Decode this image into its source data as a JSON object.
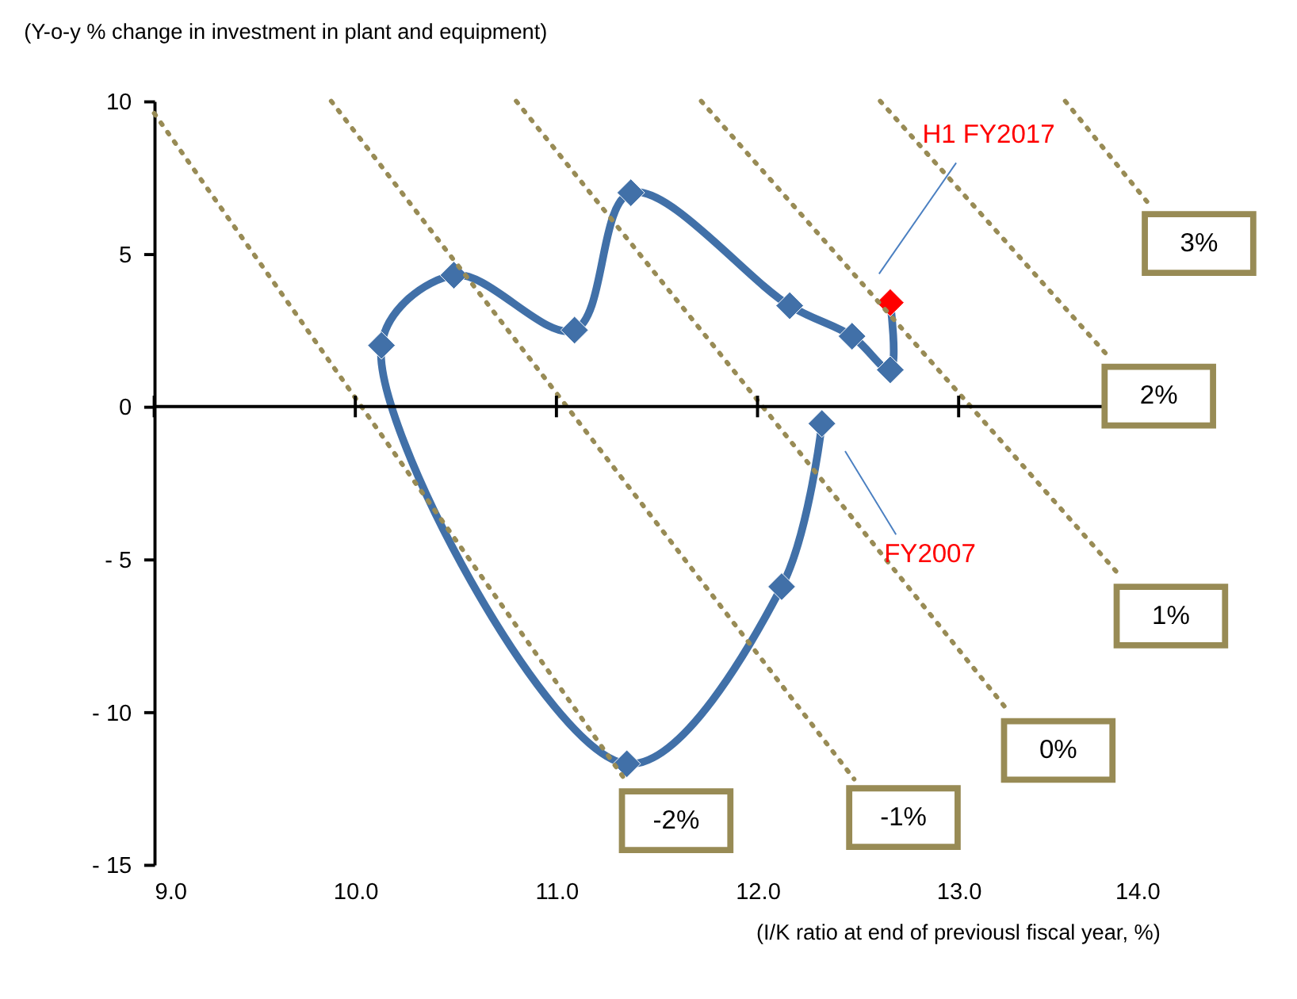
{
  "chart_data": {
    "type": "line",
    "xlabel": "(I/K ratio at end of previousl fiscal year, %)",
    "ylabel": "(Y-o-y % change in investment in plant and equipment)",
    "xlim": [
      9,
      14
    ],
    "ylim": [
      -15,
      10
    ],
    "xticks": [
      {
        "value": 9,
        "label": "9.0"
      },
      {
        "value": 10,
        "label": "10.0"
      },
      {
        "value": 11,
        "label": "11.0"
      },
      {
        "value": 12,
        "label": "12.0"
      },
      {
        "value": 13,
        "label": "13.0"
      },
      {
        "value": 14,
        "label": "14.0"
      }
    ],
    "yticks": [
      {
        "value": -15,
        "label": "- 15"
      },
      {
        "value": -10,
        "label": "- 10"
      },
      {
        "value": -5,
        "label": "- 5"
      },
      0,
      5,
      10
    ],
    "series": [
      {
        "color": "#4170a8",
        "marker": "diamond",
        "x": [
          12.32,
          12.12,
          11.35,
          10.13,
          10.49,
          11.09,
          11.37,
          12.16,
          12.47,
          12.66,
          12.66
        ],
        "values": [
          -0.56,
          -5.9,
          -11.7,
          2.0,
          4.3,
          2.5,
          7.0,
          3.3,
          2.3,
          1.2,
          3.4
        ],
        "colors": [
          "#4170a8",
          "#4170a8",
          "#4170a8",
          "#4170a8",
          "#4170a8",
          "#4170a8",
          "#4170a8",
          "#4170a8",
          "#4170a8",
          "#4170a8",
          "#ff0000"
        ]
      },
      {
        "name": "-2%",
        "color": "#988b55",
        "line_style": "dotted",
        "marker": "none",
        "x": [
          9.0,
          11.35
        ],
        "values": [
          9.6,
          -12.3
        ]
      },
      {
        "name": "-1%",
        "color": "#988b55",
        "line_style": "dotted",
        "marker": "none",
        "x": [
          9.88,
          12.48
        ],
        "values": [
          10,
          -12.2
        ]
      },
      {
        "name": "0%",
        "color": "#988b55",
        "line_style": "dotted",
        "marker": "none",
        "x": [
          10.8,
          13.25
        ],
        "values": [
          10,
          -10.0
        ]
      },
      {
        "name": "1%",
        "color": "#988b55",
        "line_style": "dotted",
        "marker": "none",
        "x": [
          11.72,
          13.81
        ],
        "values": [
          10,
          -5.6
        ]
      },
      {
        "name": "2%",
        "color": "#988b55",
        "line_style": "dotted",
        "marker": "none",
        "x": [
          12.61,
          13.75
        ],
        "values": [
          10,
          1.6
        ]
      },
      {
        "name": "3%",
        "color": "#988b55",
        "line_style": "dotted",
        "marker": "none",
        "x": [
          13.53,
          13.95
        ],
        "values": [
          10,
          6.6
        ]
      }
    ],
    "annotations": [
      "H1 FY2017",
      "FY2007"
    ]
  }
}
